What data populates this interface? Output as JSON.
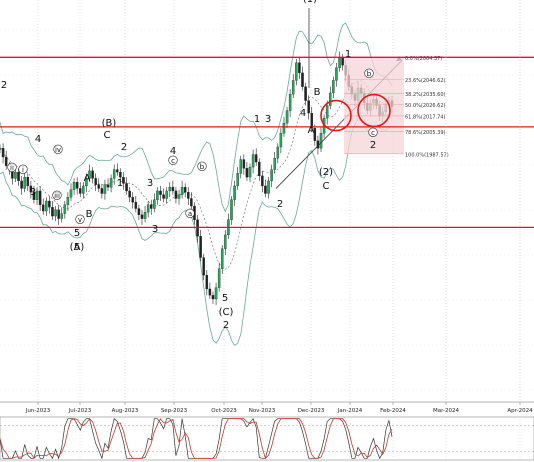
{
  "chart_data": [
    {
      "type": "candlestick",
      "x_ticks": [
        "Jun-2023",
        "Jul-2023",
        "Aug-2023",
        "Sep-2023",
        "Oct-2023",
        "Nov-2023",
        "Dec-2023",
        "Jan-2024",
        "Feb-2024",
        "Mar-2024",
        "Apr-2024"
      ],
      "y_range": [
        1790,
        2110
      ],
      "resistance_levels": [
        2064.37,
        2009.0,
        1929.0
      ],
      "fib_levels": [
        {
          "label": "0.0%(2064.37)",
          "value": 2064.37
        },
        {
          "label": "23.6%(2046.62)",
          "value": 2046.62
        },
        {
          "label": "38.2%(2035.60)",
          "value": 2035.6
        },
        {
          "label": "50.0%(2026.62)",
          "value": 2026.62
        },
        {
          "label": "61.8%(2017.74)",
          "value": 2017.74
        },
        {
          "label": "78.6%(2005.39)",
          "value": 2005.39
        },
        {
          "label": "100.0%(1987.57)",
          "value": 1987.57
        }
      ],
      "wave_labels": [
        "2",
        "4",
        "(B)",
        "C",
        "2",
        "3",
        "1",
        "A",
        "B",
        "5",
        "(A)",
        "4",
        "3",
        "5",
        "(C)",
        "2",
        "1",
        "3",
        "B",
        "A",
        "4",
        "2",
        "C",
        "(2)",
        "1",
        "b",
        "2",
        "(1)",
        "c",
        "5",
        "3",
        "b",
        "c",
        "a",
        "i",
        "ii",
        "iii",
        "iv",
        "v"
      ],
      "price_series": [
        1992,
        1985,
        1978,
        1975,
        1968,
        1973,
        1966,
        1960,
        1969,
        1962,
        1957,
        1951,
        1958,
        1947,
        1942,
        1950,
        1945,
        1938,
        1943,
        1936,
        1940,
        1947,
        1953,
        1959,
        1965,
        1960,
        1956,
        1962,
        1968,
        1974,
        1968,
        1963,
        1960,
        1956,
        1963,
        1961,
        1968,
        1975,
        1973,
        1969,
        1964,
        1958,
        1953,
        1949,
        1944,
        1939,
        1936,
        1941,
        1947,
        1944,
        1951,
        1958,
        1955,
        1952,
        1958,
        1961,
        1958,
        1952,
        1955,
        1961,
        1957,
        1952,
        1946,
        1935,
        1922,
        1905,
        1891,
        1880,
        1875,
        1872,
        1881,
        1896,
        1912,
        1923,
        1935,
        1951,
        1962,
        1972,
        1983,
        1976,
        1969,
        1977,
        1987,
        1981,
        1970,
        1962,
        1956,
        1966,
        1975,
        1984,
        1993,
        2004,
        2012,
        2022,
        2035,
        2046,
        2060,
        2052,
        2041,
        2030,
        2020,
        2008,
        1998,
        1992,
        2004,
        2016,
        2026,
        2036,
        2046,
        2056,
        2064,
        2058,
        2050,
        2041,
        2035,
        2030,
        2040,
        2036,
        2028,
        2022,
        2028,
        2031,
        2026,
        2018,
        2021,
        2027,
        2030,
        2025
      ],
      "oscillator": {
        "type": "stochastic",
        "levels": [
          20,
          80
        ]
      }
    }
  ]
}
